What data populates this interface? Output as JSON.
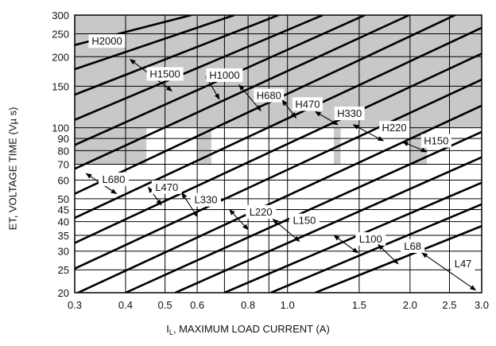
{
  "chart_data": {
    "type": "line",
    "xlabel_prefix": "I",
    "xlabel_sub": "L",
    "xlabel_rest": ", MAXIMUM LOAD CURRENT (A)",
    "ylabel": "ET, VOLTAGE TIME (Vµ s)",
    "x_scale": "log",
    "y_scale": "log",
    "xlim": [
      0.3,
      3.0
    ],
    "ylim": [
      20,
      300
    ],
    "x_ticks": [
      0.3,
      0.4,
      0.5,
      0.6,
      0.8,
      1.0,
      1.5,
      2.0,
      2.5,
      3.0
    ],
    "x_tick_labels": [
      "0.3",
      "0.4",
      "0.5",
      "0.6",
      "0.8",
      "1.0",
      "1.5",
      "2.0",
      "2.5",
      "3.0"
    ],
    "y_ticks": [
      20,
      25,
      30,
      35,
      40,
      45,
      50,
      60,
      70,
      80,
      90,
      100,
      150,
      200,
      250,
      300
    ],
    "y_tick_labels": [
      "20",
      "25",
      "30",
      "35",
      "40",
      "45",
      "50",
      "60",
      "70",
      "80",
      "90",
      "100",
      "150",
      "200",
      "250",
      "300"
    ],
    "x_grid": [
      0.3,
      0.4,
      0.5,
      0.6,
      0.7,
      0.8,
      0.9,
      1.0,
      1.5,
      2.0,
      2.5,
      3.0
    ],
    "y_grid": [
      20,
      25,
      30,
      35,
      40,
      45,
      50,
      60,
      70,
      80,
      90,
      100,
      150,
      200,
      250,
      300
    ],
    "series": [
      {
        "name": "L47",
        "x": [
          1.17,
          3.0
        ],
        "y": [
          20,
          38.3
        ]
      },
      {
        "name": "L68",
        "x": [
          0.91,
          3.0
        ],
        "y": [
          20,
          47.4
        ]
      },
      {
        "name": "L100",
        "x": [
          0.7,
          3.0
        ],
        "y": [
          20,
          58.5
        ]
      },
      {
        "name": "L150",
        "x": [
          0.53,
          3.0
        ],
        "y": [
          20,
          75.0
        ]
      },
      {
        "name": "L220",
        "x": [
          0.4,
          3.0
        ],
        "y": [
          20,
          96.0
        ]
      },
      {
        "name": "L330",
        "x": [
          0.3,
          3.0
        ],
        "y": [
          19.7,
          124
        ]
      },
      {
        "name": "L470",
        "x": [
          0.3,
          3.0
        ],
        "y": [
          25.3,
          160
        ]
      },
      {
        "name": "L680",
        "x": [
          0.3,
          3.0
        ],
        "y": [
          32.5,
          206
        ]
      },
      {
        "name": "H150",
        "x": [
          0.3,
          3.0
        ],
        "y": [
          41.5,
          265
        ]
      },
      {
        "name": "H220",
        "x": [
          0.3,
          2.58
        ],
        "y": [
          52.5,
          300
        ]
      },
      {
        "name": "H330",
        "x": [
          0.3,
          1.99
        ],
        "y": [
          67.0,
          300
        ]
      },
      {
        "name": "H470",
        "x": [
          0.3,
          1.55
        ],
        "y": [
          84.5,
          300
        ]
      },
      {
        "name": "H680",
        "x": [
          0.3,
          1.22
        ],
        "y": [
          108,
          300
        ]
      },
      {
        "name": "H1000",
        "x": [
          0.3,
          0.95
        ],
        "y": [
          138,
          300
        ]
      },
      {
        "name": "H1500",
        "x": [
          0.3,
          0.74
        ],
        "y": [
          177,
          300
        ]
      },
      {
        "name": "H2000",
        "x": [
          0.3,
          0.58
        ],
        "y": [
          224,
          300
        ]
      }
    ],
    "shaded_regions": [
      {
        "x_from": 0.3,
        "x_to": 3.0,
        "y_from": 100,
        "y_to": 300
      },
      {
        "x_from": 0.3,
        "x_to": 0.45,
        "y_from": 70,
        "y_to": 100
      },
      {
        "x_from": 0.6,
        "x_to": 0.65,
        "y_from": 70,
        "y_to": 100
      },
      {
        "x_from": 1.3,
        "x_to": 1.35,
        "y_from": 70,
        "y_to": 100
      },
      {
        "x_from": 2.0,
        "x_to": 2.2,
        "y_from": 70,
        "y_to": 100
      }
    ],
    "annotations": [
      {
        "text": "H2000",
        "x": 0.36,
        "y": 233
      },
      {
        "text": "H1500",
        "x": 0.5,
        "y": 169,
        "arrow_from": [
          0.41,
          195
        ],
        "arrow_to": [
          0.52,
          143
        ]
      },
      {
        "text": "H1000",
        "x": 0.7,
        "y": 167,
        "arrow_from": [
          0.63,
          165
        ],
        "arrow_to": [
          0.68,
          132
        ]
      },
      {
        "text": "H680",
        "x": 0.9,
        "y": 137,
        "arrow_from": [
          0.76,
          152
        ],
        "arrow_to": [
          0.86,
          118
        ]
      },
      {
        "text": "H470",
        "x": 1.12,
        "y": 126,
        "arrow_from": [
          0.97,
          131
        ],
        "arrow_to": [
          1.05,
          110
        ]
      },
      {
        "text": "H330",
        "x": 1.42,
        "y": 115,
        "arrow_from": [
          1.17,
          117
        ],
        "arrow_to": [
          1.33,
          103
        ]
      },
      {
        "text": "H220",
        "x": 1.83,
        "y": 100,
        "arrow_from": [
          1.45,
          103
        ],
        "arrow_to": [
          1.72,
          88
        ]
      },
      {
        "text": "H150",
        "x": 2.32,
        "y": 88,
        "arrow_from": [
          1.92,
          87
        ],
        "arrow_to": [
          2.2,
          79
        ]
      },
      {
        "text": "L680",
        "x": 0.374,
        "y": 60.5,
        "arrow_from": [
          0.32,
          64
        ],
        "arrow_to": [
          0.38,
          52.5
        ]
      },
      {
        "text": "L470",
        "x": 0.505,
        "y": 56,
        "arrow_from": [
          0.455,
          56
        ],
        "arrow_to": [
          0.49,
          47
        ]
      },
      {
        "text": "L330",
        "x": 0.63,
        "y": 49.5,
        "arrow_from": [
          0.55,
          53
        ],
        "arrow_to": [
          0.6,
          42
        ]
      },
      {
        "text": "L220",
        "x": 0.86,
        "y": 44,
        "arrow_from": [
          0.72,
          45
        ],
        "arrow_to": [
          0.8,
          37
        ]
      },
      {
        "text": "L150",
        "x": 1.1,
        "y": 40.5,
        "arrow_from": [
          0.92,
          41
        ],
        "arrow_to": [
          1.07,
          33
        ]
      },
      {
        "text": "L100",
        "x": 1.6,
        "y": 33.8,
        "arrow_from": [
          1.3,
          35
        ],
        "arrow_to": [
          1.49,
          29.5
        ]
      },
      {
        "text": "L68",
        "x": 2.03,
        "y": 31.5,
        "arrow_from": [
          1.67,
          32
        ],
        "arrow_to": [
          1.87,
          26.5
        ]
      },
      {
        "text": "L47",
        "x": 2.7,
        "y": 26.5,
        "arrow_from": [
          2.14,
          29.5
        ],
        "arrow_to": [
          2.9,
          20.5
        ]
      }
    ],
    "colors": {
      "shade": "#c8c8c8",
      "line": "#000000",
      "grid": "#000000"
    }
  }
}
